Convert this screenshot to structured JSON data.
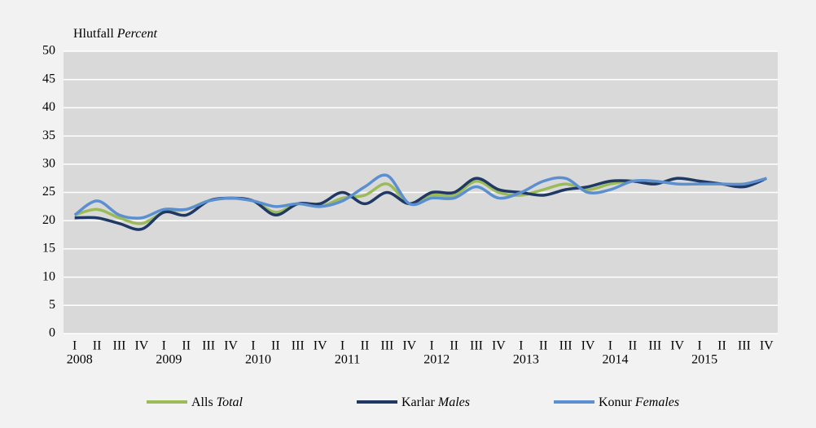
{
  "chart_data": {
    "type": "line",
    "y_label": "Hlutfall",
    "y_label_en": "Percent",
    "categories": [
      "I",
      "II",
      "III",
      "IV",
      "I",
      "II",
      "III",
      "IV",
      "I",
      "II",
      "III",
      "IV",
      "I",
      "II",
      "III",
      "IV",
      "I",
      "II",
      "III",
      "IV",
      "I",
      "II",
      "III",
      "IV",
      "I",
      "II",
      "III",
      "IV",
      "I",
      "II",
      "III",
      "IV"
    ],
    "years": [
      "2008",
      "2009",
      "2010",
      "2011",
      "2012",
      "2013",
      "2014",
      "2015"
    ],
    "series": [
      {
        "name": "Alls",
        "name_en": "Total",
        "color": "#9bbb59",
        "values": [
          21,
          22,
          20.5,
          19.5,
          21.5,
          22,
          23.5,
          24,
          23.5,
          21.5,
          23,
          22.5,
          24,
          24.5,
          26.5,
          23,
          24.5,
          24.5,
          27,
          25,
          24.5,
          25.5,
          26.5,
          25.5,
          26.5,
          27,
          26.5,
          27.5,
          27,
          26.5,
          26.5,
          27.5
        ]
      },
      {
        "name": "Karlar",
        "name_en": "Males",
        "color": "#1f3864",
        "values": [
          20.5,
          20.5,
          19.5,
          18.5,
          21.5,
          21,
          23.5,
          24,
          23.5,
          21,
          23,
          23,
          25,
          23,
          25,
          23,
          25,
          25,
          27.5,
          25.5,
          25,
          24.5,
          25.5,
          26,
          27,
          27,
          26.5,
          27.5,
          27,
          26.5,
          26,
          27.5
        ]
      },
      {
        "name": "Konur",
        "name_en": "Females",
        "color": "#5b8fd0",
        "values": [
          21,
          23.5,
          21,
          20.5,
          22,
          22,
          23.5,
          24,
          23.5,
          22.5,
          23,
          22.5,
          23.5,
          26,
          28,
          23,
          24,
          24,
          26,
          24,
          25,
          27,
          27.5,
          25,
          25.5,
          27,
          27,
          26.5,
          26.5,
          26.5,
          26.5,
          27.5
        ]
      }
    ],
    "ylim": [
      0,
      50
    ],
    "yticks": [
      0,
      5,
      10,
      15,
      20,
      25,
      30,
      35,
      40,
      45,
      50
    ],
    "grid": true
  }
}
